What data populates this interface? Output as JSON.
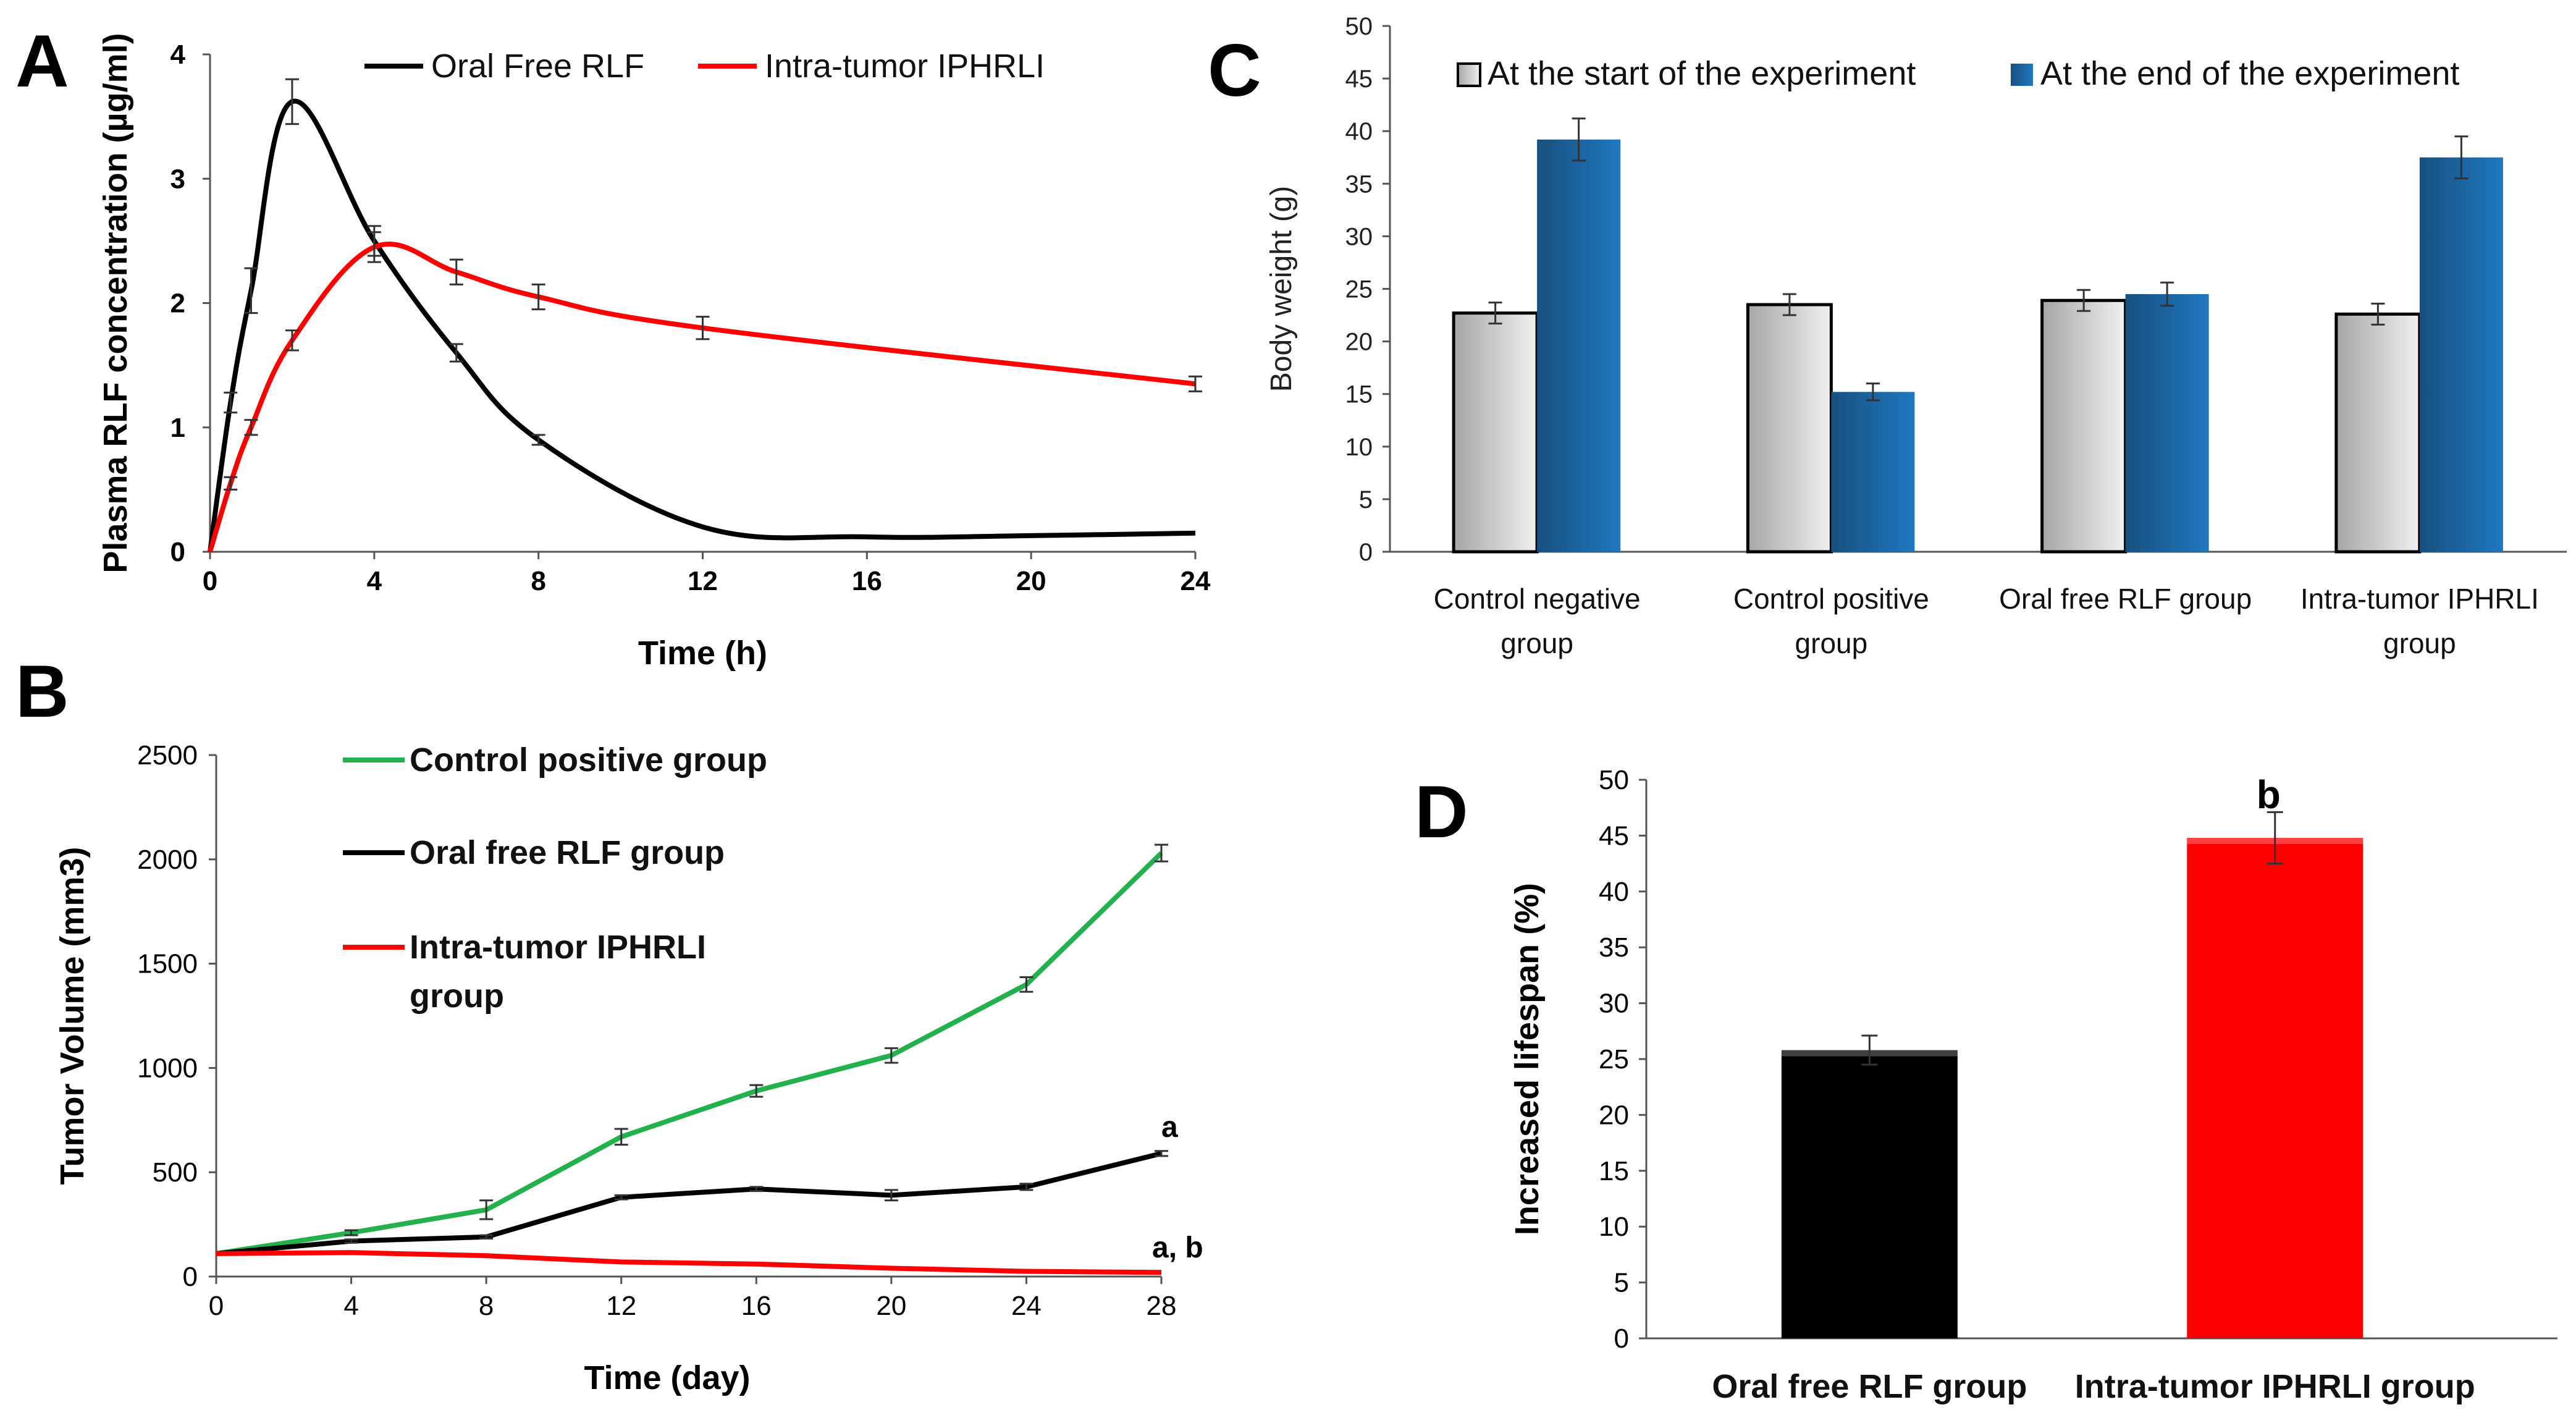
{
  "chart_data": [
    {
      "panel": "A",
      "type": "line",
      "xlabel": "Time (h)",
      "ylabel": "Plasma RLF concentration (µg/ml)",
      "xlim": [
        0,
        24
      ],
      "ylim": [
        0,
        4
      ],
      "xticks": [
        "0",
        "4",
        "8",
        "12",
        "16",
        "20",
        "24"
      ],
      "yticks": [
        "0",
        "1",
        "2",
        "3",
        "4"
      ],
      "legend": [
        "Oral Free RLF",
        "Intra-tumor IPHRLI"
      ],
      "series": [
        {
          "name": "Oral Free RLF",
          "color": "#000000",
          "x": [
            0,
            0.5,
            1,
            2,
            4,
            6,
            8,
            12,
            16,
            20,
            24
          ],
          "y": [
            0,
            1.2,
            2.1,
            3.62,
            2.5,
            1.6,
            0.9,
            0.2,
            0.12,
            0.13,
            0.15
          ],
          "err": [
            0,
            0.08,
            0.18,
            0.18,
            0.12,
            0.07,
            0.04,
            0,
            0,
            0,
            0
          ]
        },
        {
          "name": "Intra-tumor IPHRLI",
          "color": "#ff0000",
          "x": [
            0,
            0.5,
            1,
            2,
            4,
            6,
            8,
            12,
            24
          ],
          "y": [
            0,
            0.55,
            1.0,
            1.7,
            2.45,
            2.25,
            2.05,
            1.8,
            1.35
          ],
          "err": [
            0,
            0.05,
            0.06,
            0.08,
            0.12,
            0.1,
            0.1,
            0.09,
            0.06
          ]
        }
      ]
    },
    {
      "panel": "B",
      "type": "line",
      "xlabel": "Time (day)",
      "ylabel": "Tumor Volume (mm3)",
      "xlim": [
        0,
        28
      ],
      "ylim": [
        0,
        2500
      ],
      "xticks": [
        "0",
        "4",
        "8",
        "12",
        "16",
        "20",
        "24",
        "28"
      ],
      "yticks": [
        "0",
        "500",
        "1000",
        "1500",
        "2000",
        "2500"
      ],
      "annotations": [
        "a",
        "a, b"
      ],
      "series": [
        {
          "name": "Control positive group",
          "color": "#22b14c",
          "x": [
            0,
            4,
            8,
            12,
            16,
            20,
            24,
            28
          ],
          "y": [
            110,
            210,
            320,
            670,
            890,
            1060,
            1400,
            2030
          ],
          "err": [
            0,
            12,
            45,
            38,
            28,
            35,
            35,
            40
          ]
        },
        {
          "name": "Oral free RLF group",
          "color": "#000000",
          "x": [
            0,
            4,
            8,
            12,
            16,
            20,
            24,
            28
          ],
          "y": [
            110,
            170,
            190,
            380,
            420,
            390,
            430,
            590
          ],
          "err": [
            0,
            8,
            8,
            10,
            10,
            25,
            15,
            12
          ]
        },
        {
          "name": "Intra-tumor IPHRLI group",
          "color": "#ff0000",
          "x": [
            0,
            4,
            8,
            12,
            16,
            20,
            24,
            28
          ],
          "y": [
            110,
            115,
            100,
            70,
            60,
            40,
            25,
            20
          ],
          "err": [
            0,
            0,
            0,
            0,
            0,
            0,
            0,
            0
          ]
        }
      ],
      "legend": [
        "Control positive group",
        "Oral free RLF group",
        "Intra-tumor IPHRLI",
        "group"
      ]
    },
    {
      "panel": "C",
      "type": "bar",
      "ylabel": "Body weight (g)",
      "ylim": [
        0,
        50
      ],
      "yticks": [
        "0",
        "5",
        "10",
        "15",
        "20",
        "25",
        "30",
        "35",
        "40",
        "45",
        "50"
      ],
      "categories": [
        [
          "Control negative",
          "group"
        ],
        [
          "Control positive",
          "group"
        ],
        [
          "Oral free RLF group"
        ],
        [
          "Intra-tumor IPHRLI",
          "group"
        ]
      ],
      "series": [
        {
          "name": "At the start of the experiment",
          "color": "#c8c8c8",
          "values": [
            22.7,
            23.5,
            23.9,
            22.6
          ],
          "err": [
            1.0,
            1.0,
            1.0,
            1.0
          ]
        },
        {
          "name": "At the end of the experiment",
          "color": "#1f6fb0",
          "values": [
            39.2,
            15.2,
            24.5,
            37.5
          ],
          "err": [
            2.0,
            0.8,
            1.1,
            2.0
          ]
        }
      ]
    },
    {
      "panel": "D",
      "type": "bar",
      "ylabel": "Increased lifespan (%)",
      "ylim": [
        0,
        50
      ],
      "yticks": [
        "0",
        "5",
        "10",
        "15",
        "20",
        "25",
        "30",
        "35",
        "40",
        "45",
        "50"
      ],
      "categories": [
        "Oral free RLF group",
        "Intra-tumor IPHRLI  group"
      ],
      "values": [
        25.8,
        44.8
      ],
      "err": [
        1.3,
        2.3
      ],
      "colors": [
        "#000000",
        "#ff0000"
      ],
      "annotations": [
        "b"
      ]
    }
  ]
}
